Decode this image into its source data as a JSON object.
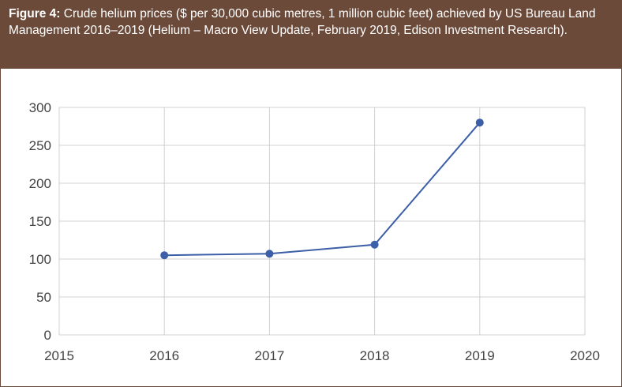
{
  "caption": {
    "figure_label": "Figure 4:",
    "text": " Crude helium prices ($ per 30,000 cubic metres, 1 million cubic feet) achieved by US Bureau Land Management 2016–2019 (Helium – Macro View Update, February 2019, Edison Investment Research)."
  },
  "colors": {
    "caption_bg": "#6b4a3a",
    "series": "#3d5fa8",
    "grid": "#d0d0d0"
  },
  "chart_data": {
    "type": "line",
    "title": "",
    "xlabel": "",
    "ylabel": "",
    "xlim": [
      2015,
      2020
    ],
    "ylim": [
      0,
      300
    ],
    "x_ticks": [
      2015,
      2016,
      2017,
      2018,
      2019,
      2020
    ],
    "y_ticks": [
      0,
      50,
      100,
      150,
      200,
      250,
      300
    ],
    "grid": true,
    "legend": "none",
    "series": [
      {
        "x": [
          2016,
          2017,
          2018,
          2019
        ],
        "values": [
          105,
          107,
          119,
          280
        ]
      }
    ]
  }
}
